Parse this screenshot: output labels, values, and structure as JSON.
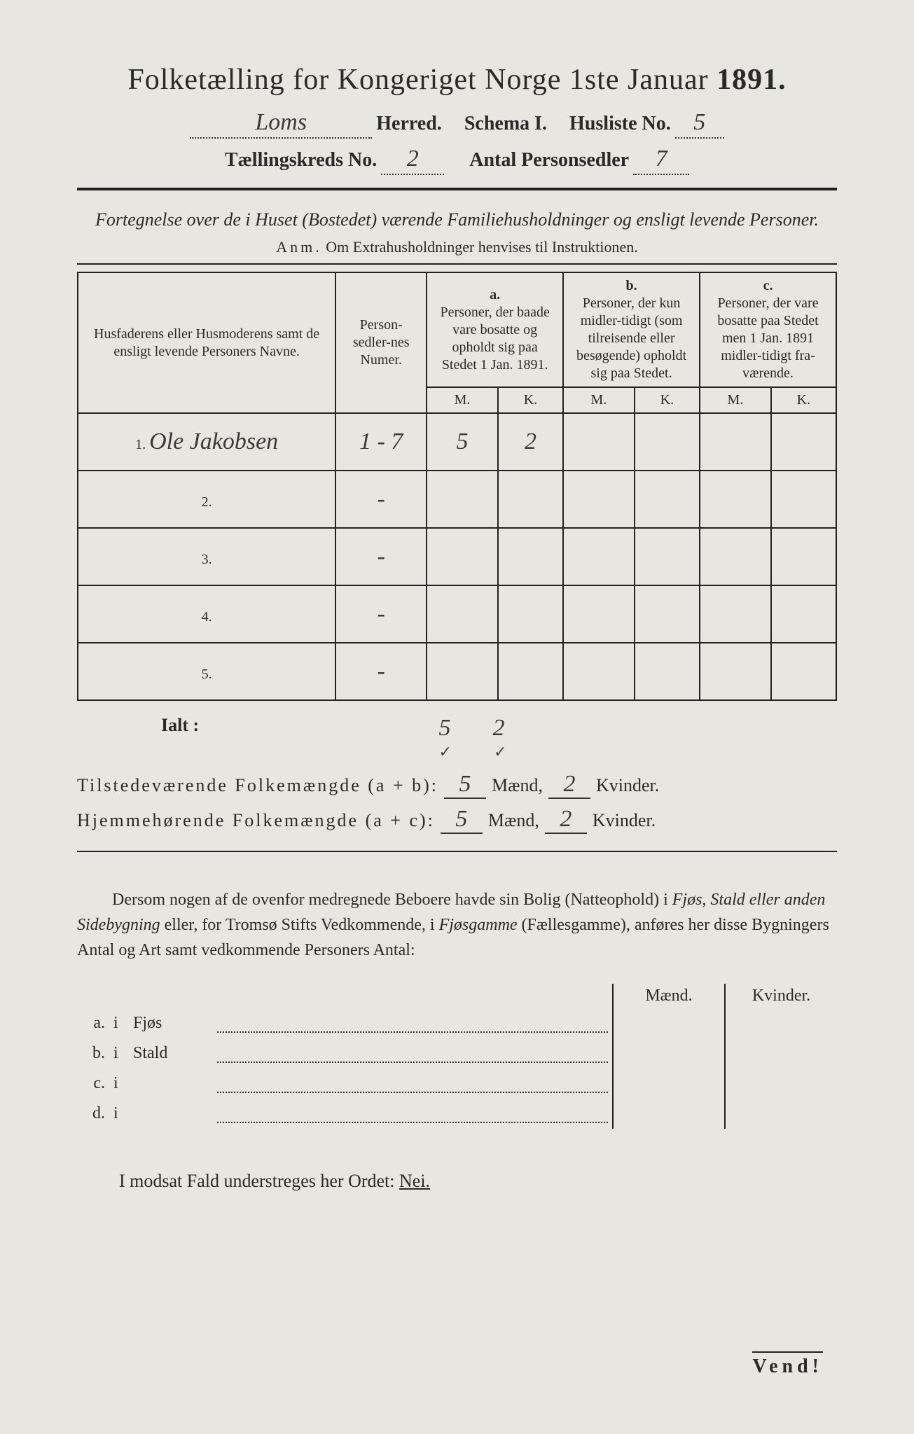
{
  "title_prefix": "Folketælling for Kongeriget Norge 1ste Januar",
  "title_year": "1891.",
  "herred_value": "Loms",
  "herred_label": "Herred.",
  "schema_label": "Schema I.",
  "husliste_label": "Husliste No.",
  "husliste_value": "5",
  "kreds_label": "Tællingskreds No.",
  "kreds_value": "2",
  "antal_label": "Antal Personsedler",
  "antal_value": "7",
  "subtitle": "Fortegnelse over de i Huset (Bostedet) værende Familiehusholdninger og ensligt levende Personer.",
  "anm_prefix": "Anm.",
  "anm_text": "Om Extrahusholdninger henvises til Instruktionen.",
  "table": {
    "col1": "Husfaderens eller Husmoderens samt de ensligt levende Personers Navne.",
    "col2": "Person-sedler-nes Numer.",
    "col_a_letter": "a.",
    "col_a": "Personer, der baade vare bosatte og opholdt sig paa Stedet 1 Jan. 1891.",
    "col_b_letter": "b.",
    "col_b": "Personer, der kun midler-tidigt (som tilreisende eller besøgende) opholdt sig paa Stedet.",
    "col_c_letter": "c.",
    "col_c": "Personer, der vare bosatte paa Stedet men 1 Jan. 1891 midler-tidigt fra-værende.",
    "M": "M.",
    "K": "K.",
    "rows": [
      {
        "n": "1.",
        "name": "Ole Jakobsen",
        "num": "1 - 7",
        "aM": "5",
        "aK": "2",
        "bM": "",
        "bK": "",
        "cM": "",
        "cK": ""
      },
      {
        "n": "2.",
        "name": "",
        "num": "-",
        "aM": "",
        "aK": "",
        "bM": "",
        "bK": "",
        "cM": "",
        "cK": ""
      },
      {
        "n": "3.",
        "name": "",
        "num": "-",
        "aM": "",
        "aK": "",
        "bM": "",
        "bK": "",
        "cM": "",
        "cK": ""
      },
      {
        "n": "4.",
        "name": "",
        "num": "-",
        "aM": "",
        "aK": "",
        "bM": "",
        "bK": "",
        "cM": "",
        "cK": ""
      },
      {
        "n": "5.",
        "name": "",
        "num": "-",
        "aM": "",
        "aK": "",
        "bM": "",
        "bK": "",
        "cM": "",
        "cK": ""
      }
    ]
  },
  "ialt_label": "Ialt :",
  "ialt_aM": "5",
  "ialt_aK": "2",
  "check1": "✓",
  "check2": "✓",
  "summary1_label": "Tilstedeværende Folkemængde (a + b):",
  "summary1_m": "5",
  "summary1_m_lbl": "Mænd,",
  "summary1_k": "2",
  "summary1_k_lbl": "Kvinder.",
  "summary2_label": "Hjemmehørende Folkemængde (a + c):",
  "summary2_m": "5",
  "summary2_m_lbl": "Mænd,",
  "summary2_k": "2",
  "summary2_k_lbl": "Kvinder.",
  "paragraph_text": "Dersom nogen af de ovenfor medregnede Beboere havde sin Bolig (Natteophold) i Fjøs, Stald eller anden Sidebygning eller, for Tromsø Stifts Vedkommende, i Fjøsgamme (Fællesgamme), anføres her disse Bygningers Antal og Art samt vedkommende Personers Antal:",
  "lodging": {
    "hdr_m": "Mænd.",
    "hdr_k": "Kvinder.",
    "rows": [
      {
        "l": "a.",
        "i": "i",
        "label": "Fjøs"
      },
      {
        "l": "b.",
        "i": "i",
        "label": "Stald"
      },
      {
        "l": "c.",
        "i": "i",
        "label": ""
      },
      {
        "l": "d.",
        "i": "i",
        "label": ""
      }
    ]
  },
  "modsat_text": "I modsat Fald understreges her Ordet:",
  "modsat_nei": "Nei.",
  "vend": "Vend!"
}
